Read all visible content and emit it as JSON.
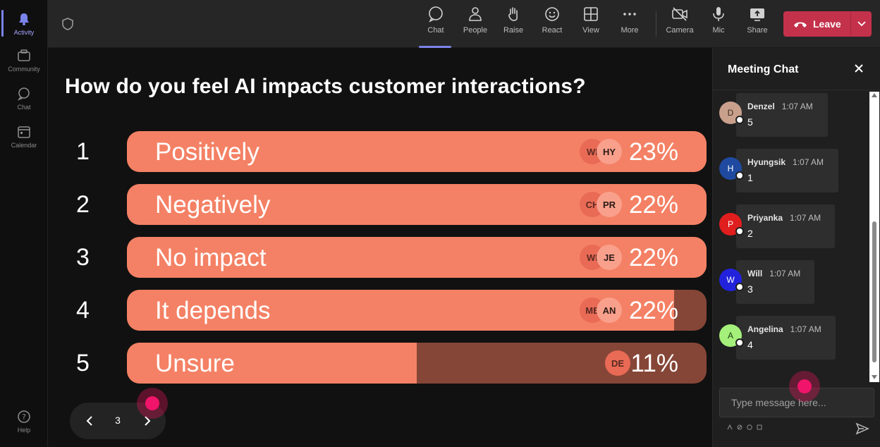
{
  "rail": {
    "items": [
      {
        "label": "Activity",
        "icon": "bell-icon",
        "active": true
      },
      {
        "label": "Community",
        "icon": "community-icon"
      },
      {
        "label": "Chat",
        "icon": "chat-icon"
      },
      {
        "label": "Calendar",
        "icon": "calendar-icon"
      }
    ],
    "help_label": "Help"
  },
  "toolbar": {
    "chat": "Chat",
    "people": "People",
    "raise": "Raise",
    "react": "React",
    "view": "View",
    "more": "More",
    "camera": "Camera",
    "mic": "Mic",
    "share": "Share",
    "leave": "Leave"
  },
  "poll": {
    "question": "How do you feel AI impacts customer interactions?",
    "options": [
      {
        "num": "1",
        "label": "Positively",
        "pct": "23%",
        "fill": 1.0,
        "avatars": [
          "WI",
          "HY"
        ]
      },
      {
        "num": "2",
        "label": "Negatively",
        "pct": "22%",
        "fill": 1.0,
        "avatars": [
          "CH",
          "PR"
        ]
      },
      {
        "num": "3",
        "label": "No impact",
        "pct": "22%",
        "fill": 1.0,
        "avatars": [
          "WI",
          "JE"
        ]
      },
      {
        "num": "4",
        "label": "It depends",
        "pct": "22%",
        "fill": 0.944,
        "avatars": [
          "ME",
          "AN"
        ]
      },
      {
        "num": "5",
        "label": "Unsure",
        "pct": "11%",
        "fill": 0.5,
        "avatars": [
          "DE"
        ]
      }
    ],
    "page": "3"
  },
  "chat": {
    "title": "Meeting Chat",
    "messages": [
      {
        "initial": "D",
        "name": "Denzel",
        "time": "1:07 AM",
        "text": "5",
        "avatar_color": "#c9a08c",
        "initial_color": "#3a2a22"
      },
      {
        "initial": "H",
        "name": "Hyungsik",
        "time": "1:07 AM",
        "text": "1",
        "avatar_color": "#1f4aa0",
        "initial_color": "#ffffff"
      },
      {
        "initial": "P",
        "name": "Priyanka",
        "time": "1:07 AM",
        "text": "2",
        "avatar_color": "#e01e1e",
        "initial_color": "#ffffff"
      },
      {
        "initial": "W",
        "name": "Will",
        "time": "1:07 AM",
        "text": "3",
        "avatar_color": "#2222dd",
        "initial_color": "#ffffff"
      },
      {
        "initial": "A",
        "name": "Angelina",
        "time": "1:07 AM",
        "text": "4",
        "avatar_color": "#a4f07a",
        "initial_color": "#1c3a10"
      }
    ],
    "input_placeholder": "Type message here..."
  },
  "colors": {
    "bar_fill": "#f48165",
    "bar_track": "#864637",
    "leave": "#c4314b",
    "accent": "#7b83eb"
  }
}
